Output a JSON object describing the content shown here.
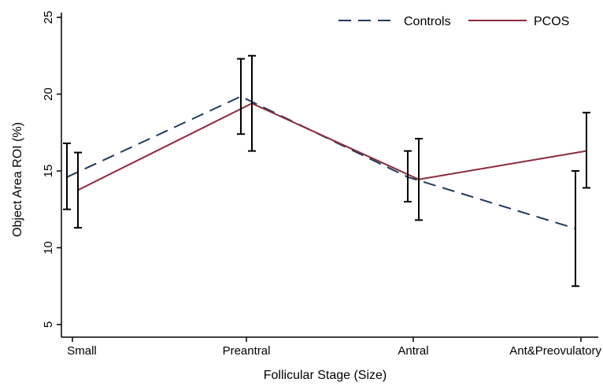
{
  "chart_data": {
    "type": "line",
    "title": "",
    "xlabel": "Follicular Stage (Size)",
    "ylabel": "Object Area ROI (%)",
    "categories": [
      "Small",
      "Preantral",
      "Antral",
      "Ant&Preovulatory"
    ],
    "ylim": [
      5,
      25
    ],
    "yticks": [
      5,
      10,
      15,
      20,
      25
    ],
    "grid": false,
    "legend_position": "top-right",
    "series": [
      {
        "name": "Controls",
        "style": "dashed",
        "color": "#1f3a5f",
        "values": [
          14.6,
          19.85,
          14.6,
          11.25
        ],
        "err_low": [
          12.5,
          17.4,
          13.0,
          7.5
        ],
        "err_high": [
          16.8,
          22.3,
          16.3,
          15.0
        ]
      },
      {
        "name": "PCOS",
        "style": "solid",
        "color": "#8b2b3a",
        "values": [
          13.75,
          19.4,
          14.45,
          16.3
        ],
        "err_low": [
          11.3,
          16.3,
          11.8,
          13.9
        ],
        "err_high": [
          16.2,
          22.5,
          17.1,
          18.8
        ]
      }
    ]
  }
}
